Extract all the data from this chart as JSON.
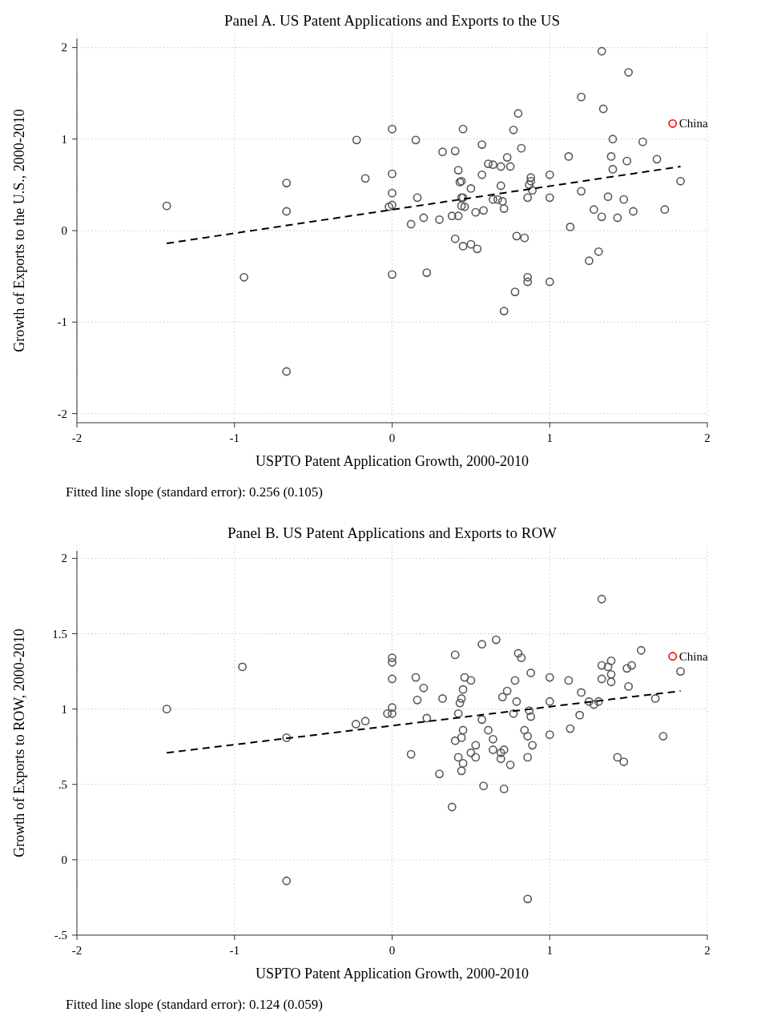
{
  "chart_data": [
    {
      "type": "scatter",
      "title": "Panel A. US Patent Applications and Exports to the US",
      "xlabel": "USPTO Patent Application Growth, 2000-2010",
      "ylabel": "Growth of Exports to the U.S., 2000-2010",
      "xlim": [
        -2,
        2
      ],
      "xticks": [
        -2,
        -1,
        0,
        1,
        2
      ],
      "ylim": [
        -2.1,
        2.1
      ],
      "yticks": [
        -2,
        -1,
        0,
        1,
        2
      ],
      "grid": true,
      "annotations": [
        "Fitted line slope (standard error): 0.256 (0.105)"
      ],
      "series": [
        {
          "color": "#595959",
          "marker": "circle",
          "x": [
            -1.43,
            -0.67,
            -0.67,
            -0.94,
            -0.67,
            -0.225,
            -0.17,
            0.0,
            0.0,
            0.0,
            -0.02,
            0.0,
            0.0,
            0.15,
            0.16,
            0.12,
            0.2,
            0.22,
            0.3,
            0.32,
            0.4,
            0.38,
            0.42,
            0.4,
            0.42,
            0.43,
            0.44,
            0.44,
            0.45,
            0.44,
            0.46,
            0.45,
            0.45,
            0.5,
            0.5,
            0.54,
            0.53,
            0.58,
            0.57,
            0.57,
            0.61,
            0.64,
            0.64,
            0.67,
            0.69,
            0.69,
            0.7,
            0.71,
            0.73,
            0.75,
            0.71,
            0.77,
            0.8,
            0.79,
            0.84,
            0.78,
            0.82,
            0.88,
            0.88,
            0.87,
            0.89,
            0.86,
            0.86,
            0.86,
            1.0,
            1.0,
            1.0,
            1.12,
            1.13,
            1.2,
            1.2,
            1.25,
            1.28,
            1.31,
            1.33,
            1.34,
            1.33,
            1.37,
            1.4,
            1.39,
            1.4,
            1.43,
            1.47,
            1.49,
            1.5,
            1.53,
            1.59,
            1.68,
            1.73,
            1.83
          ],
          "values": [
            0.27,
            0.52,
            0.21,
            -0.51,
            -1.54,
            0.99,
            0.57,
            1.11,
            0.62,
            0.41,
            0.26,
            0.28,
            -0.48,
            0.99,
            0.36,
            0.07,
            0.14,
            -0.46,
            0.12,
            0.86,
            0.87,
            0.16,
            0.16,
            -0.09,
            0.66,
            0.53,
            0.54,
            0.36,
            0.36,
            0.27,
            0.26,
            1.11,
            -0.17,
            0.46,
            -0.15,
            -0.2,
            0.2,
            0.22,
            0.94,
            0.61,
            0.73,
            0.72,
            0.34,
            0.34,
            0.7,
            0.49,
            0.32,
            0.24,
            0.8,
            0.7,
            -0.88,
            1.1,
            1.28,
            -0.06,
            -0.08,
            -0.67,
            0.9,
            0.58,
            0.54,
            0.5,
            0.44,
            0.36,
            -0.51,
            -0.56,
            0.61,
            0.36,
            -0.56,
            0.81,
            0.04,
            0.43,
            1.46,
            -0.33,
            0.23,
            -0.23,
            1.96,
            1.33,
            0.15,
            0.37,
            1.0,
            0.81,
            0.67,
            0.14,
            0.34,
            0.76,
            1.73,
            0.21,
            0.97,
            0.78,
            0.23,
            0.54
          ]
        },
        {
          "name": "China",
          "color": "#ff0000",
          "marker": "circle",
          "x": [
            1.78
          ],
          "values": [
            1.17
          ]
        },
        {
          "type": "line",
          "color": "#000000",
          "line_style": "dashed",
          "x": [
            -1.43,
            1.83
          ],
          "values": [
            -0.14,
            0.7
          ]
        }
      ]
    },
    {
      "type": "scatter",
      "title": "Panel B. US Patent Applications and Exports to ROW",
      "xlabel": "USPTO Patent Application Growth, 2000-2010",
      "ylabel": "Growth of Exports to ROW, 2000-2010",
      "xlim": [
        -2,
        2
      ],
      "xticks": [
        -2,
        -1,
        0,
        1,
        2
      ],
      "ylim": [
        -0.5,
        2.05
      ],
      "yticks": [
        {
          "value": -0.5,
          "label": "-.5"
        },
        0,
        {
          "value": 0.5,
          "label": ".5"
        },
        1,
        {
          "value": 1.5,
          "label": "1.5"
        },
        2
      ],
      "grid": true,
      "annotations": [
        "Fitted line slope (standard error): 0.124 (0.059)"
      ],
      "series": [
        {
          "color": "#595959",
          "marker": "circle",
          "x": [
            -1.43,
            -0.95,
            -0.67,
            -0.67,
            -0.23,
            -0.17,
            -0.03,
            0.0,
            0.0,
            0.0,
            0.0,
            0.0,
            0.15,
            0.16,
            0.2,
            0.22,
            0.12,
            0.3,
            0.32,
            0.38,
            0.4,
            0.42,
            0.4,
            0.44,
            0.45,
            0.42,
            0.45,
            0.44,
            0.43,
            0.44,
            0.45,
            0.46,
            0.5,
            0.5,
            0.53,
            0.53,
            0.57,
            0.57,
            0.58,
            0.61,
            0.64,
            0.64,
            0.66,
            0.69,
            0.69,
            0.71,
            0.7,
            0.73,
            0.71,
            0.75,
            0.77,
            0.79,
            0.78,
            0.8,
            0.82,
            0.84,
            0.86,
            0.86,
            0.89,
            0.87,
            0.88,
            0.88,
            0.86,
            1.0,
            1.0,
            1.0,
            1.12,
            1.13,
            1.19,
            1.2,
            1.25,
            1.28,
            1.31,
            1.33,
            1.33,
            1.33,
            1.37,
            1.39,
            1.39,
            1.39,
            1.43,
            1.47,
            1.49,
            1.5,
            1.52,
            1.58,
            1.67,
            1.72,
            1.83
          ],
          "values": [
            1.0,
            1.28,
            0.81,
            -0.14,
            0.9,
            0.92,
            0.97,
            0.97,
            1.01,
            1.2,
            1.31,
            1.34,
            1.21,
            1.06,
            1.14,
            0.94,
            0.7,
            0.57,
            1.07,
            0.35,
            1.36,
            0.97,
            0.79,
            0.81,
            0.86,
            0.68,
            0.64,
            0.59,
            1.04,
            1.07,
            1.13,
            1.21,
            1.19,
            0.71,
            0.68,
            0.76,
            1.43,
            0.93,
            0.49,
            0.86,
            0.8,
            0.73,
            1.46,
            0.71,
            0.67,
            0.73,
            1.08,
            1.12,
            0.47,
            0.63,
            0.97,
            1.05,
            1.19,
            1.37,
            1.34,
            0.86,
            0.82,
            0.68,
            0.76,
            0.99,
            0.95,
            1.24,
            -0.26,
            1.21,
            1.05,
            0.83,
            1.19,
            0.87,
            0.96,
            1.11,
            1.05,
            1.03,
            1.05,
            1.73,
            1.29,
            1.2,
            1.28,
            1.32,
            1.23,
            1.18,
            0.68,
            0.65,
            1.27,
            1.15,
            1.29,
            1.39,
            1.07,
            0.82,
            1.25
          ]
        },
        {
          "name": "China",
          "color": "#ff0000",
          "marker": "circle",
          "x": [
            1.78
          ],
          "values": [
            1.35
          ]
        },
        {
          "type": "line",
          "color": "#000000",
          "line_style": "dashed",
          "x": [
            -1.43,
            1.83
          ],
          "values": [
            0.71,
            1.12
          ]
        }
      ]
    }
  ]
}
